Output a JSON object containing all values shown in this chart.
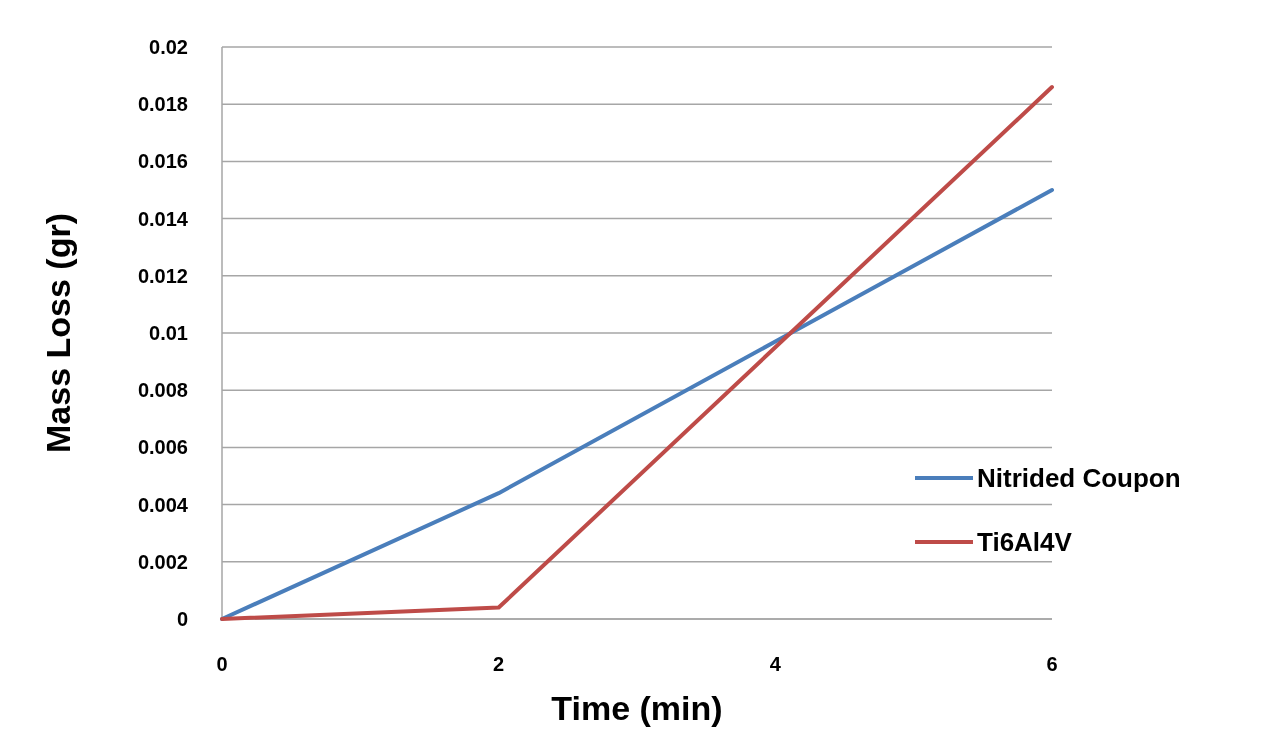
{
  "chart_data": {
    "type": "line",
    "xlabel": "Time (min)",
    "ylabel": "Mass Loss (gr)",
    "x": [
      0,
      2,
      4,
      6
    ],
    "series": [
      {
        "name": "Nitrided Coupon",
        "color": "#4a7ebb",
        "values": [
          0,
          0.0044,
          0.0097,
          0.015
        ]
      },
      {
        "name": "Ti6Al4V",
        "color": "#be4b48",
        "values": [
          0,
          0.0004,
          0.0095,
          0.0186
        ]
      }
    ],
    "xlim": [
      0,
      6
    ],
    "xticks": [
      0,
      2,
      4,
      6
    ],
    "ylim": [
      0,
      0.02
    ],
    "yticks": [
      0,
      0.002,
      0.004,
      0.006,
      0.008,
      0.01,
      0.012,
      0.014,
      0.016,
      0.018,
      0.02
    ],
    "grid": "y",
    "legend": "right",
    "marker": "none",
    "line_style": "solid"
  }
}
